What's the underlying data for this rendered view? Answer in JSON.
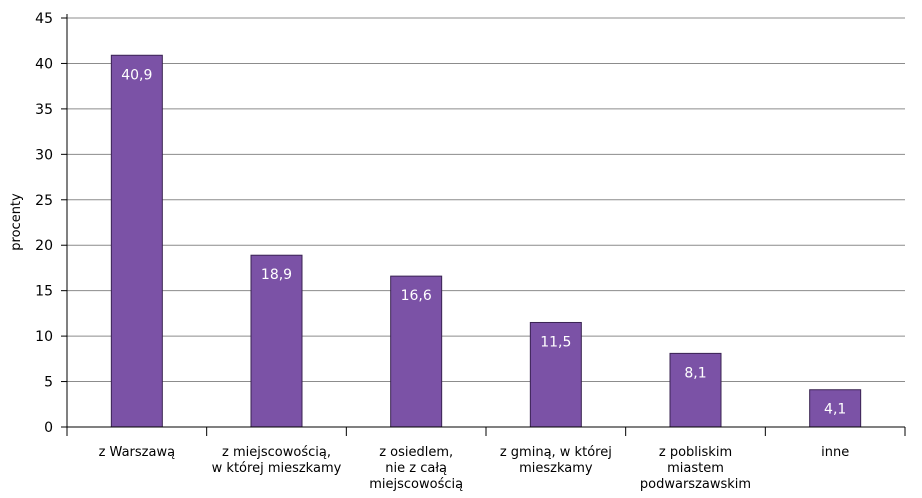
{
  "chart_data": {
    "type": "bar",
    "categories": [
      [
        "z  Warszawą"
      ],
      [
        "z miejscowością,",
        "w której mieszkamy"
      ],
      [
        "z osiedlem,",
        "nie z całą",
        "miejscowością"
      ],
      [
        "z gminą, w której",
        "mieszkamy"
      ],
      [
        "z  pobliskim",
        "miastem",
        "podwarszawskim"
      ],
      [
        "inne"
      ]
    ],
    "values": [
      40.9,
      18.9,
      16.6,
      11.5,
      8.1,
      4.1
    ],
    "value_labels": [
      "40,9",
      "18,9",
      "16,6",
      "11,5",
      "8,1",
      "4,1"
    ],
    "ylabel": "procenty",
    "ylim": [
      0,
      45
    ],
    "yticks": [
      0,
      5,
      10,
      15,
      20,
      25,
      30,
      35,
      40,
      45
    ],
    "grid": true,
    "colors": {
      "bar": "#7b52a6",
      "bar_stroke": "#3a2352",
      "grid": "#8c8c8c",
      "axis": "#000000"
    }
  }
}
